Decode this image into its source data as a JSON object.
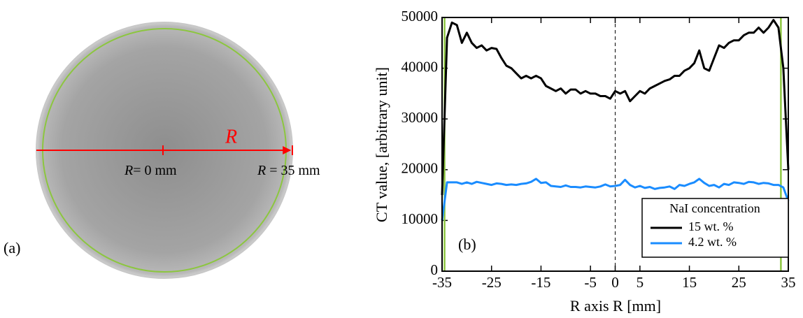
{
  "panel_a": {
    "label": "(a)",
    "symbol": "R",
    "center_value": "= 0 mm",
    "edge_value": " = 35 mm"
  },
  "chart_data": {
    "type": "line",
    "panel_label": "(b)",
    "xlabel": "R axis R [mm]",
    "ylabel": "CT value, [arbitrary unit]",
    "x": [
      -35,
      -34,
      -33,
      -32,
      -31,
      -30,
      -29,
      -28,
      -27,
      -26,
      -25,
      -24,
      -23,
      -22,
      -21,
      -20,
      -19,
      -18,
      -17,
      -16,
      -15,
      -14,
      -13,
      -12,
      -11,
      -10,
      -9,
      -8,
      -7,
      -6,
      -5,
      -4,
      -3,
      -2,
      -1,
      0,
      1,
      2,
      3,
      4,
      5,
      6,
      7,
      8,
      9,
      10,
      11,
      12,
      13,
      14,
      15,
      16,
      17,
      18,
      19,
      20,
      21,
      22,
      23,
      24,
      25,
      26,
      27,
      28,
      29,
      30,
      31,
      32,
      33,
      34,
      35
    ],
    "series": [
      {
        "name": "15 wt. %",
        "color": "#000000",
        "values": [
          15000,
          46000,
          49000,
          48500,
          45000,
          47000,
          45000,
          44000,
          44500,
          43500,
          44000,
          43800,
          42000,
          40500,
          40000,
          39000,
          38000,
          38500,
          38000,
          38500,
          38000,
          36500,
          36000,
          35500,
          36000,
          35000,
          35800,
          35800,
          35000,
          35500,
          35000,
          35000,
          34500,
          34500,
          34000,
          35500,
          35000,
          35500,
          33500,
          34500,
          35500,
          35000,
          36000,
          36500,
          37000,
          37500,
          37800,
          38500,
          38500,
          39500,
          40000,
          41000,
          43500,
          40000,
          39500,
          42000,
          44500,
          44000,
          45000,
          45500,
          45500,
          46500,
          47000,
          47000,
          48000,
          47000,
          48000,
          49500,
          48000,
          40000,
          20000
        ]
      },
      {
        "name": "4.2 wt. %",
        "color": "#1a8cff",
        "values": [
          10000,
          17500,
          17500,
          17500,
          17200,
          17500,
          17200,
          17600,
          17400,
          17200,
          17000,
          17300,
          17200,
          17000,
          17100,
          17000,
          17200,
          17300,
          17600,
          18200,
          17400,
          17500,
          16800,
          16700,
          16600,
          16900,
          16600,
          16600,
          16500,
          16700,
          16600,
          16500,
          16700,
          17100,
          16700,
          16800,
          17000,
          18000,
          17000,
          16500,
          16800,
          16400,
          16600,
          16200,
          16400,
          16500,
          16700,
          16200,
          17000,
          16800,
          17200,
          17500,
          18200,
          17400,
          16800,
          17000,
          16500,
          17200,
          17000,
          17500,
          17400,
          17200,
          17600,
          17500,
          17200,
          17400,
          17300,
          17000,
          17000,
          16500,
          13800
        ]
      }
    ],
    "legend_title": "NaI concentration",
    "legend": "lower right",
    "xlim": [
      -35,
      35
    ],
    "xticks": [
      -35,
      -25,
      -15,
      -5,
      0,
      5,
      15,
      25,
      35
    ],
    "ylim": [
      0,
      50000
    ],
    "yticks": [
      0,
      10000,
      20000,
      30000,
      40000,
      50000
    ],
    "vlines": [
      {
        "value": 0,
        "color": "#000000",
        "dashed": true
      },
      {
        "value": -34.5,
        "color": "#8cc63f",
        "dashed": false
      },
      {
        "value": 33.5,
        "color": "#8cc63f",
        "dashed": false
      }
    ]
  }
}
